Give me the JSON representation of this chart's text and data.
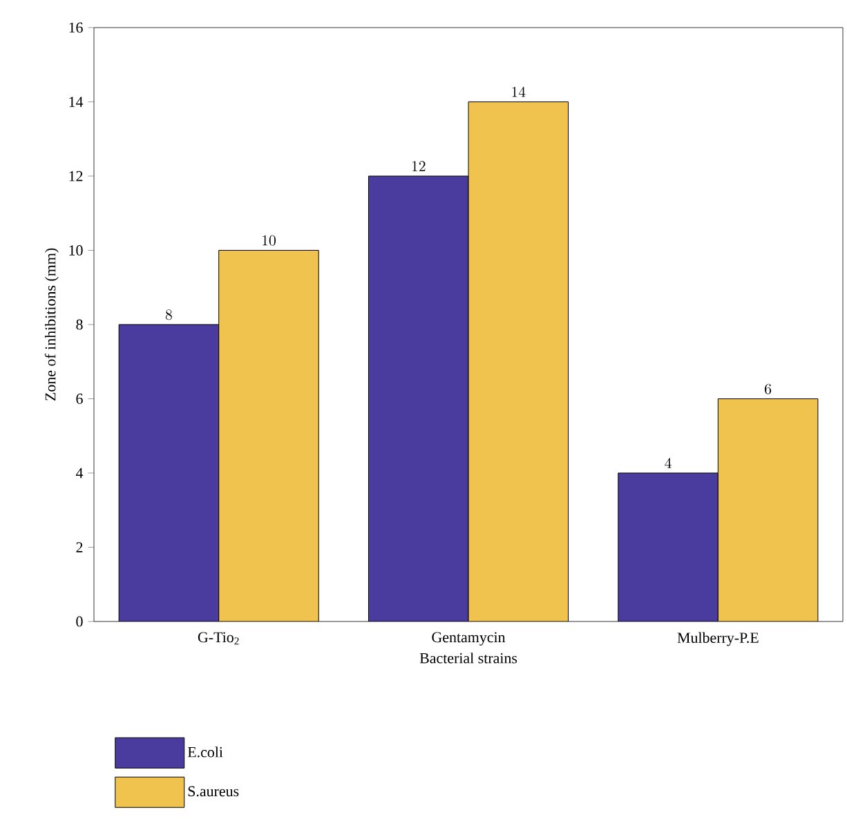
{
  "chart_data": {
    "type": "bar",
    "xlabel": "Bacterial strains",
    "ylabel": "Zone of inhibitions (mm)",
    "categories": [
      "G-Tio$_{2}$",
      "Gentamycin",
      "Mulberry-P.E"
    ],
    "series": [
      {
        "name": "E.coli",
        "color": "#4a3b9e",
        "values": [
          8,
          12,
          4
        ]
      },
      {
        "name": "S.aureus",
        "color": "#f0c24e",
        "values": [
          10,
          14,
          6
        ]
      }
    ],
    "ylim": [
      0,
      16
    ],
    "yticks": [
      0,
      2,
      4,
      6,
      8,
      10,
      12,
      14,
      16
    ],
    "data_labels": true,
    "legend": "bottom left",
    "grid": false
  }
}
